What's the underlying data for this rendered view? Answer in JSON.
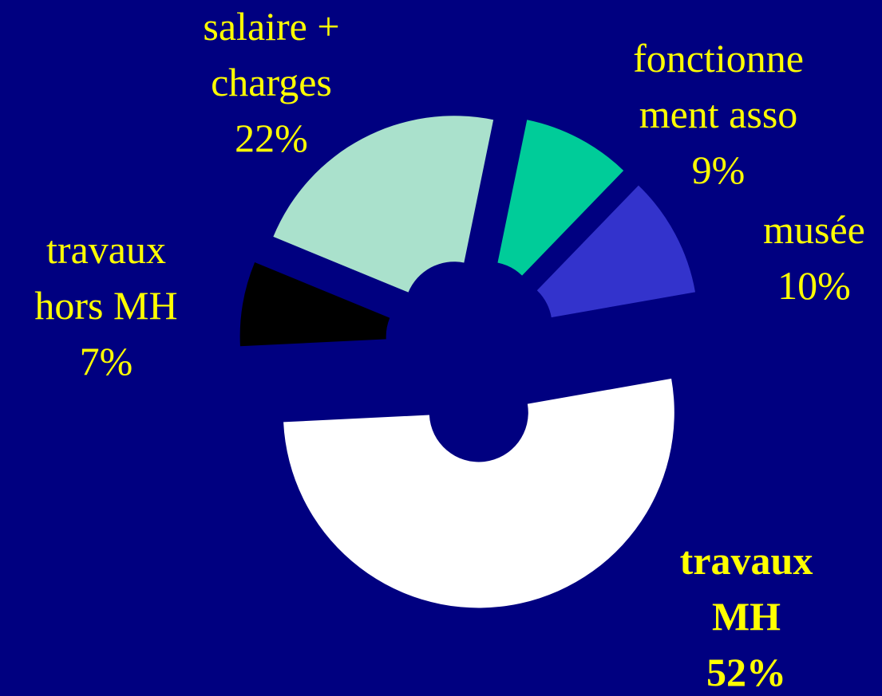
{
  "chart_data": {
    "type": "donut",
    "categories": [
      [
        "travaux",
        "MH"
      ],
      [
        "travaux",
        "hors MH"
      ],
      [
        "salaire +",
        "charges"
      ],
      [
        "fonctionne",
        "ment asso"
      ],
      [
        "musée"
      ]
    ],
    "values": [
      52,
      7,
      22,
      9,
      10
    ],
    "value_labels": [
      "52%",
      "7%",
      "22%",
      "9%",
      "10%"
    ],
    "colors": [
      "#ffffff",
      "#000000",
      "#aae1cc",
      "#00cc99",
      "#3333cc"
    ],
    "bold": [
      true,
      false,
      false,
      false,
      false
    ]
  }
}
